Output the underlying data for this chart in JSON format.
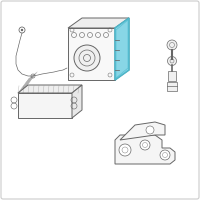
{
  "bg_color": "#ffffff",
  "border_color": "#cccccc",
  "line_color": "#666666",
  "highlight_color": "#4ab8cc",
  "highlight_fill": "#7ed4e6",
  "fig_size": [
    2.0,
    2.0
  ],
  "dpi": 100
}
